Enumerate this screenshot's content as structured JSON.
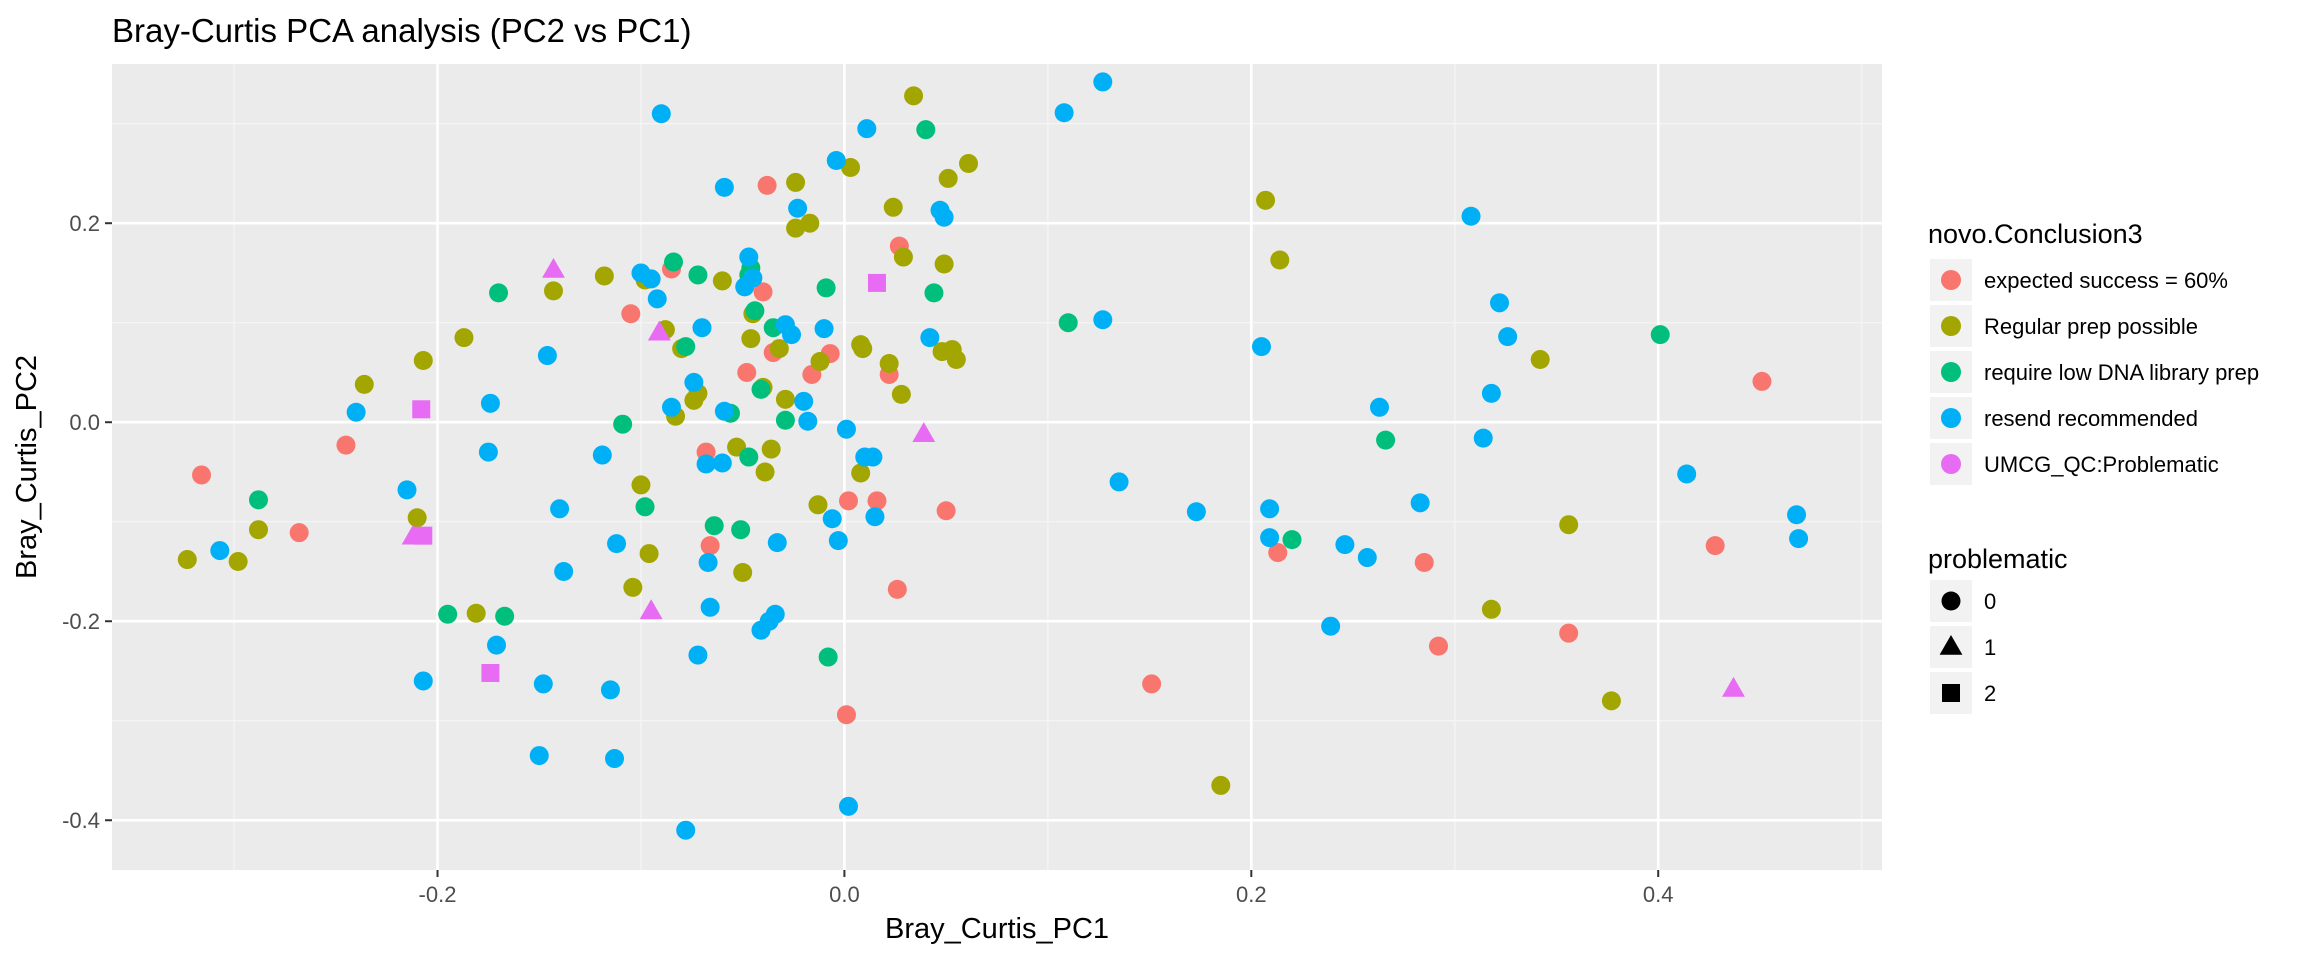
{
  "chart_data": {
    "type": "scatter",
    "title": "Bray-Curtis PCA analysis (PC2 vs PC1)",
    "xlabel": "Bray_Curtis_PC1",
    "ylabel": "Bray_Curtis_PC2",
    "xlim": [
      -0.36,
      0.51
    ],
    "ylim": [
      -0.45,
      0.36
    ],
    "xticks": [
      -0.2,
      0.0,
      0.2,
      0.4
    ],
    "yticks": [
      -0.4,
      -0.2,
      0.0,
      0.2
    ],
    "xtick_labels": [
      "-0.2",
      "0.0",
      "0.2",
      "0.4"
    ],
    "ytick_labels": [
      "-0.4",
      "-0.2",
      "0.0",
      "0.2"
    ],
    "grid": true,
    "legend_position": "right",
    "color_legend": {
      "title": "novo.Conclusion3",
      "entries": [
        {
          "label": "expected success = 60%",
          "color": "#F8766D"
        },
        {
          "label": "Regular prep possible",
          "color": "#A3A500"
        },
        {
          "label": "require low DNA library prep",
          "color": "#00BF7D"
        },
        {
          "label": "resend recommended",
          "color": "#00B0F6"
        },
        {
          "label": "UMCG_QC:Problematic",
          "color": "#E76BF3"
        }
      ]
    },
    "shape_legend": {
      "title": "problematic",
      "entries": [
        {
          "label": "0",
          "shape": "circle"
        },
        {
          "label": "1",
          "shape": "triangle"
        },
        {
          "label": "2",
          "shape": "square"
        }
      ]
    },
    "series": [
      {
        "name": "expected success = 60%",
        "color": "#F8766D",
        "shape": "circle",
        "x": [
          -0.316,
          -0.268,
          -0.245,
          -0.105,
          -0.085,
          -0.068,
          -0.066,
          -0.048,
          -0.04,
          -0.038,
          -0.035,
          -0.016,
          -0.007,
          0.001,
          0.002,
          0.016,
          0.022,
          0.026,
          0.027,
          0.05,
          0.151,
          0.213,
          0.285,
          0.292,
          0.356,
          0.428,
          0.451
        ],
        "y": [
          -0.053,
          -0.111,
          -0.023,
          0.109,
          0.154,
          -0.03,
          -0.124,
          0.05,
          0.131,
          0.238,
          0.07,
          0.048,
          0.069,
          -0.294,
          -0.079,
          -0.079,
          0.048,
          -0.168,
          0.177,
          -0.089,
          -0.263,
          -0.131,
          -0.141,
          -0.225,
          -0.212,
          -0.124,
          0.041
        ]
      },
      {
        "name": "Regular prep possible",
        "color": "#A3A500",
        "shape": "circle",
        "x": [
          -0.323,
          -0.298,
          -0.288,
          -0.236,
          -0.21,
          -0.207,
          -0.187,
          -0.181,
          -0.143,
          -0.118,
          -0.104,
          -0.1,
          -0.098,
          -0.096,
          -0.088,
          -0.083,
          -0.08,
          -0.074,
          -0.072,
          -0.06,
          -0.053,
          -0.05,
          -0.046,
          -0.045,
          -0.04,
          -0.039,
          -0.036,
          -0.032,
          -0.029,
          -0.024,
          -0.024,
          -0.017,
          -0.013,
          -0.012,
          0.003,
          0.008,
          0.008,
          0.009,
          0.022,
          0.024,
          0.028,
          0.029,
          0.034,
          0.048,
          0.049,
          0.051,
          0.053,
          0.055,
          0.061,
          0.207,
          0.214,
          0.318,
          0.342,
          0.356,
          0.377,
          0.185
        ],
        "y": [
          -0.138,
          -0.14,
          -0.108,
          0.038,
          -0.096,
          0.062,
          0.085,
          -0.192,
          0.132,
          0.147,
          -0.166,
          -0.063,
          0.143,
          -0.132,
          0.093,
          0.006,
          0.074,
          0.022,
          0.029,
          0.142,
          -0.025,
          -0.151,
          0.084,
          0.109,
          0.035,
          -0.05,
          -0.027,
          0.074,
          0.023,
          0.241,
          0.195,
          0.2,
          -0.083,
          0.061,
          0.256,
          -0.051,
          0.078,
          0.074,
          0.059,
          0.216,
          0.028,
          0.166,
          0.328,
          0.071,
          0.159,
          0.245,
          0.073,
          0.063,
          0.26,
          0.223,
          0.163,
          -0.188,
          0.063,
          -0.103,
          -0.28,
          -0.365
        ]
      },
      {
        "name": "require low DNA library prep",
        "color": "#00BF7D",
        "shape": "circle",
        "x": [
          -0.288,
          -0.195,
          -0.17,
          -0.167,
          -0.109,
          -0.098,
          -0.084,
          -0.078,
          -0.072,
          -0.064,
          -0.056,
          -0.051,
          -0.047,
          -0.047,
          -0.046,
          -0.044,
          -0.041,
          -0.035,
          -0.029,
          -0.009,
          -0.008,
          0.04,
          0.044,
          0.11,
          0.22,
          0.266,
          0.401
        ],
        "y": [
          -0.078,
          -0.193,
          0.13,
          -0.195,
          -0.002,
          -0.085,
          0.161,
          0.076,
          0.148,
          -0.104,
          0.009,
          -0.108,
          -0.035,
          0.148,
          0.155,
          0.112,
          0.033,
          0.095,
          0.002,
          0.135,
          -0.236,
          0.294,
          0.13,
          0.1,
          -0.118,
          -0.018,
          0.088
        ]
      },
      {
        "name": "resend recommended",
        "color": "#00B0F6",
        "shape": "circle",
        "x": [
          -0.307,
          -0.24,
          -0.215,
          -0.207,
          -0.174,
          -0.175,
          -0.171,
          -0.15,
          -0.148,
          -0.146,
          -0.14,
          -0.138,
          -0.119,
          -0.115,
          -0.113,
          -0.112,
          -0.1,
          -0.095,
          -0.092,
          -0.09,
          -0.085,
          -0.078,
          -0.074,
          -0.072,
          -0.07,
          -0.068,
          -0.067,
          -0.066,
          -0.06,
          -0.059,
          -0.059,
          -0.049,
          -0.047,
          -0.045,
          -0.041,
          -0.037,
          -0.034,
          -0.033,
          -0.029,
          -0.026,
          -0.023,
          -0.02,
          -0.018,
          -0.01,
          -0.006,
          -0.004,
          -0.003,
          0.001,
          0.002,
          0.01,
          0.011,
          0.015,
          0.014,
          0.042,
          0.047,
          0.049,
          0.108,
          0.127,
          0.127,
          0.135,
          0.173,
          0.205,
          0.209,
          0.209,
          0.239,
          0.246,
          0.257,
          0.263,
          0.283,
          0.308,
          0.314,
          0.318,
          0.322,
          0.326,
          0.414,
          0.468,
          0.469
        ],
        "y": [
          -0.129,
          0.01,
          -0.068,
          -0.26,
          0.019,
          -0.03,
          -0.224,
          -0.335,
          -0.263,
          0.067,
          -0.087,
          -0.15,
          -0.033,
          -0.269,
          -0.338,
          -0.122,
          0.15,
          0.144,
          0.124,
          0.31,
          0.015,
          -0.41,
          0.04,
          -0.234,
          0.095,
          -0.042,
          -0.141,
          -0.186,
          -0.041,
          0.011,
          0.236,
          0.136,
          0.166,
          0.145,
          -0.209,
          -0.2,
          -0.193,
          -0.121,
          0.098,
          0.088,
          0.215,
          0.021,
          0.001,
          0.094,
          -0.097,
          0.263,
          -0.119,
          -0.007,
          -0.386,
          -0.035,
          0.295,
          -0.095,
          -0.035,
          0.085,
          0.213,
          0.206,
          0.311,
          0.342,
          0.103,
          -0.06,
          -0.09,
          0.076,
          -0.087,
          -0.116,
          -0.205,
          -0.123,
          -0.136,
          0.015,
          -0.081,
          0.207,
          -0.016,
          0.029,
          0.12,
          0.086,
          -0.052,
          -0.093,
          -0.117
        ]
      },
      {
        "name": "UMCG_QC:Problematic",
        "color": "#E76BF3",
        "shape": "triangle",
        "x": [
          -0.212,
          -0.143,
          -0.091,
          -0.095,
          0.039,
          0.437
        ],
        "y": [
          -0.115,
          0.153,
          0.09,
          -0.19,
          -0.012,
          -0.268
        ]
      },
      {
        "name": "UMCG_QC:Problematic",
        "color": "#E76BF3",
        "shape": "square",
        "x": [
          -0.208,
          -0.207,
          -0.174,
          0.016
        ],
        "y": [
          0.013,
          -0.114,
          -0.252,
          0.14
        ]
      }
    ]
  }
}
